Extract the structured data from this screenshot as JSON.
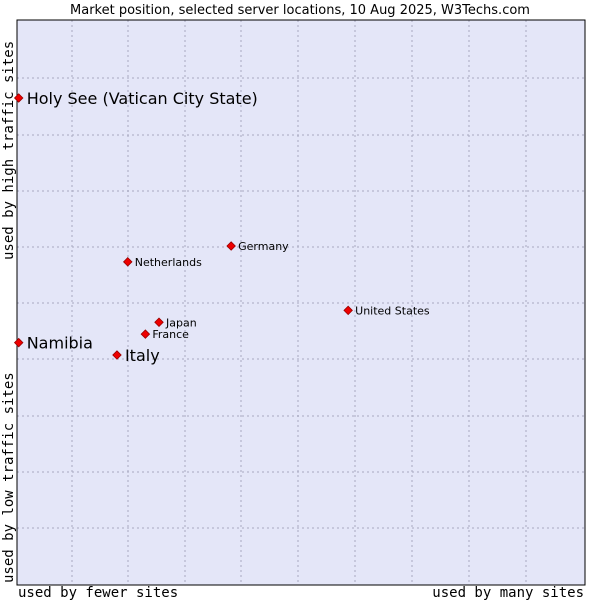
{
  "chart_data": {
    "type": "scatter",
    "title": "Market position, selected server locations, 10 Aug 2025, W3Techs.com",
    "xlabel_left": "used by fewer sites",
    "xlabel_right": "used by many sites",
    "ylabel_bottom": "used by low traffic sites",
    "ylabel_top": "used by high traffic sites",
    "xlim": [
      0,
      100
    ],
    "ylim": [
      0,
      100
    ],
    "grid": true,
    "colors": {
      "plot_bg": "#e4e6f8",
      "grid": "#a8a8c0",
      "marker": "#ee0000",
      "marker_edge": "#990000"
    },
    "points": [
      {
        "name": "Holy See (Vatican City State)",
        "x": 0.3,
        "y": 86.2,
        "size": "large"
      },
      {
        "name": "Germany",
        "x": 37.7,
        "y": 60.0,
        "size": "small"
      },
      {
        "name": "Netherlands",
        "x": 19.5,
        "y": 57.2,
        "size": "small"
      },
      {
        "name": "United States",
        "x": 58.3,
        "y": 48.6,
        "size": "small"
      },
      {
        "name": "Japan",
        "x": 25.0,
        "y": 46.5,
        "size": "small"
      },
      {
        "name": "France",
        "x": 22.6,
        "y": 44.4,
        "size": "small"
      },
      {
        "name": "Namibia",
        "x": 0.3,
        "y": 42.9,
        "size": "large"
      },
      {
        "name": "Italy",
        "x": 17.6,
        "y": 40.7,
        "size": "large"
      }
    ]
  }
}
